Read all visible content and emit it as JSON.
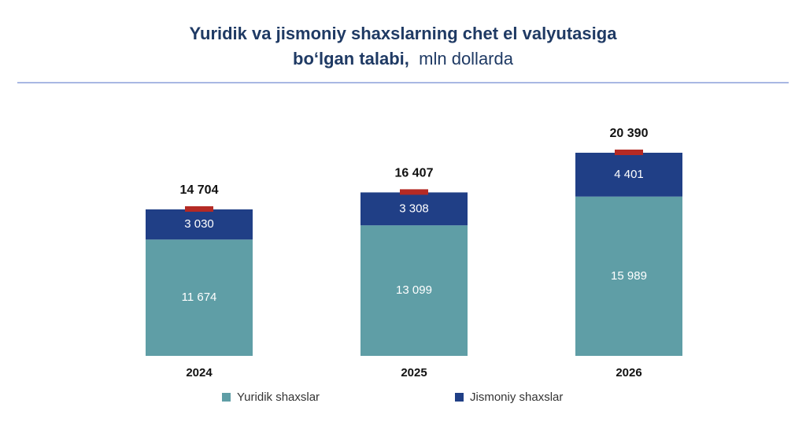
{
  "title_line1": "Yuridik va jismoniy shaxslarning chet el valyutasiga",
  "title_line2_bold": "bo‘lgan talabi,",
  "title_line2_rest": "mln dollarda",
  "colors": {
    "title": "#1f3a64",
    "rule": "#a9b7e3",
    "legal": "#5f9ea6",
    "individual": "#203f86",
    "total_marker": "#b52a24"
  },
  "chart_data": {
    "type": "bar",
    "stacked": true,
    "categories": [
      "2024",
      "2025",
      "2026"
    ],
    "series": [
      {
        "name": "Yuridik shaxslar",
        "values": [
          11674,
          13099,
          15989
        ],
        "labels": [
          "11 674",
          "13 099",
          "15 989"
        ]
      },
      {
        "name": "Jismoniy shaxslar",
        "values": [
          3030,
          3308,
          4401
        ],
        "labels": [
          "3 030",
          "3 308",
          "4 401"
        ]
      }
    ],
    "totals": [
      14704,
      16407,
      20390
    ],
    "total_labels": [
      "14 704",
      "16 407",
      "20 390"
    ],
    "legend_position": "bottom",
    "grid": false
  }
}
